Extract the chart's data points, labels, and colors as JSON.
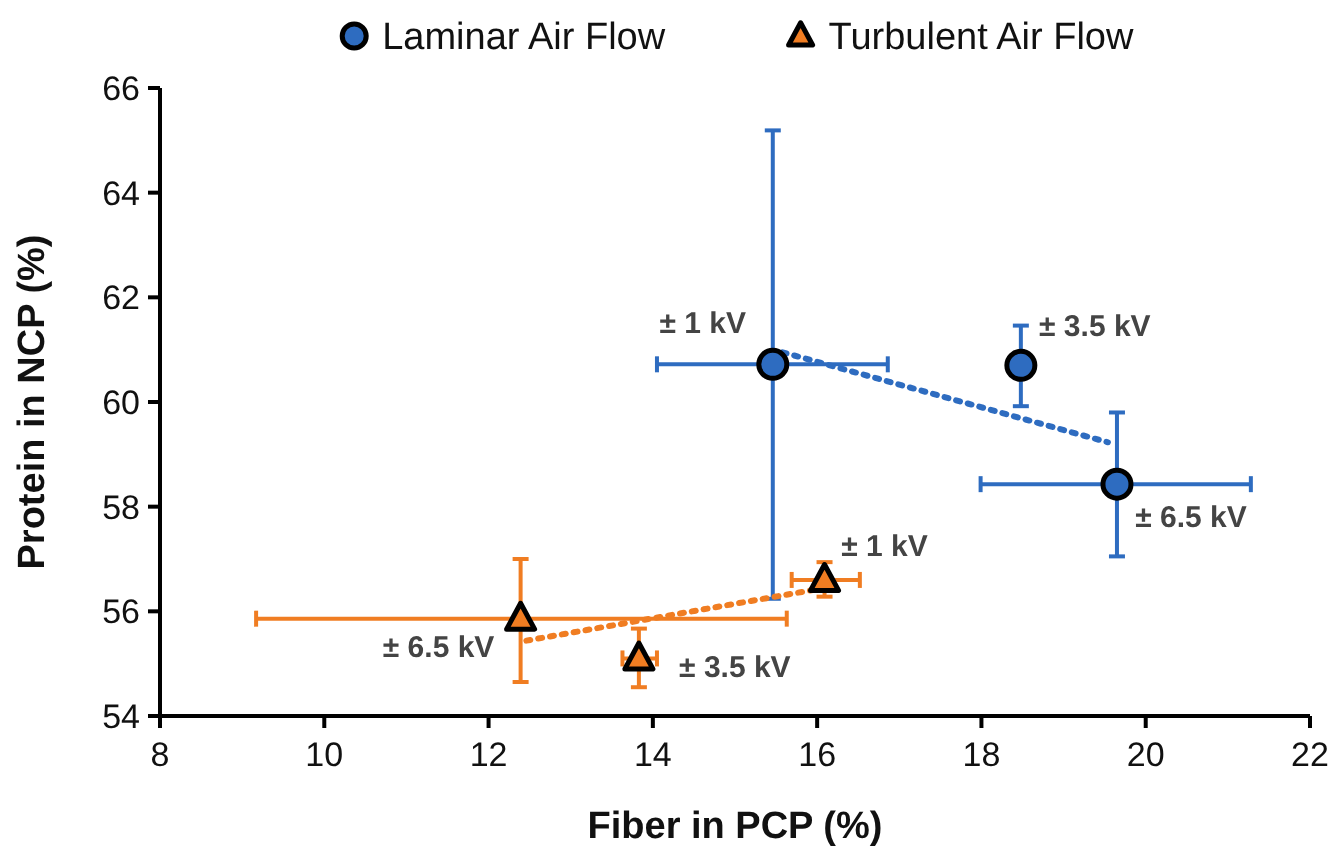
{
  "chart_data": {
    "type": "scatter",
    "xlabel": "Fiber in PCP (%)",
    "ylabel": "Protein in NCP (%)",
    "xlim": [
      8,
      22
    ],
    "xticks": [
      8,
      10,
      12,
      14,
      16,
      18,
      20,
      22
    ],
    "ylim": [
      54,
      66
    ],
    "yticks": [
      54,
      56,
      58,
      60,
      62,
      64,
      66
    ],
    "grid": false,
    "legend": "top",
    "series": [
      {
        "name": "Laminar Air Flow",
        "marker": "circle",
        "color": "#2e6cc0",
        "x": [
          15.46,
          18.48,
          19.65
        ],
        "values": [
          60.72,
          60.7,
          58.43
        ],
        "errors": [
          [
            56.24,
            65.19
          ],
          [
            59.92,
            61.46
          ],
          [
            57.05,
            59.8
          ]
        ],
        "xerrors": [
          [
            14.05,
            16.86
          ],
          null,
          [
            17.99,
            21.28
          ]
        ]
      },
      {
        "name": "Turbulent Air Flow",
        "marker": "triangle",
        "color": "#f07d22",
        "x": [
          16.09,
          13.83,
          12.39
        ],
        "values": [
          56.6,
          55.1,
          55.86
        ],
        "errors": [
          [
            56.28,
            56.94
          ],
          [
            54.55,
            55.67
          ],
          [
            54.65,
            57.0
          ]
        ],
        "xerrors": [
          [
            15.69,
            16.52
          ],
          [
            13.63,
            14.05
          ],
          [
            9.17,
            15.63
          ]
        ]
      },
      {
        "type": "line",
        "line_style": "dotted",
        "marker": "none",
        "color": "#2e6cc0",
        "x": [
          15.58,
          19.54
        ],
        "values": [
          60.95,
          59.23
        ]
      },
      {
        "type": "line",
        "line_style": "dotted",
        "marker": "none",
        "color": "#f07d22",
        "x": [
          12.46,
          16.03
        ],
        "values": [
          55.44,
          56.43
        ]
      }
    ],
    "annotations": [
      {
        "text": "± 1 kV",
        "x": 15.46,
        "y": 60.72
      },
      {
        "text": "± 3.5 kV",
        "x": 18.48,
        "y": 60.7
      },
      {
        "text": "± 6.5 kV",
        "x": 19.65,
        "y": 58.43
      },
      {
        "text": "± 1 kV",
        "x": 16.09,
        "y": 56.6
      },
      {
        "text": "± 3.5 kV",
        "x": 13.83,
        "y": 55.1
      },
      {
        "text": "± 6.5 kV",
        "x": 12.39,
        "y": 55.86
      }
    ]
  }
}
